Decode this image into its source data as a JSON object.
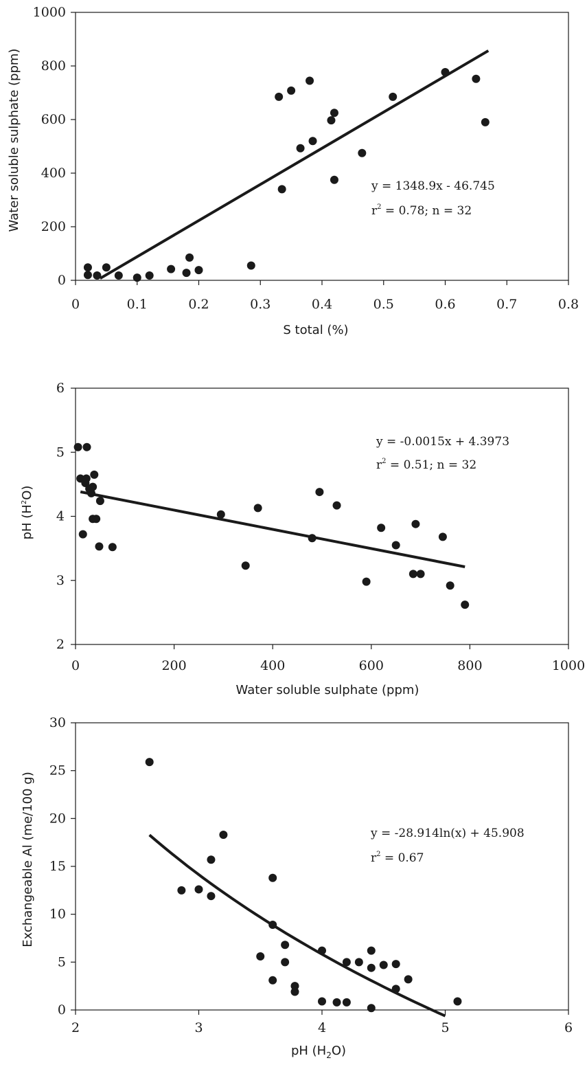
{
  "chart_data": [
    {
      "type": "scatter",
      "xlabel": "S total (%)",
      "ylabel": "Water soluble sulphate (ppm)",
      "xlim": [
        0,
        0.8
      ],
      "ylim": [
        0,
        1000
      ],
      "x_ticks": [
        "0",
        "0.1",
        "0.2",
        "0.3",
        "0.4",
        "0.5",
        "0.6",
        "0.7",
        "0.8"
      ],
      "y_ticks": [
        "0",
        "200",
        "400",
        "600",
        "800",
        "1000"
      ],
      "equation": "y = 1348.9x - 46.745",
      "stats": "r² = 0.78; n = 32",
      "trendline": {
        "kind": "linear",
        "slope": 1348.9,
        "intercept": -46.745,
        "x_range": [
          0.04,
          0.67
        ]
      },
      "points": [
        [
          0.02,
          48
        ],
        [
          0.02,
          20
        ],
        [
          0.035,
          18
        ],
        [
          0.05,
          48
        ],
        [
          0.07,
          18
        ],
        [
          0.1,
          10
        ],
        [
          0.12,
          18
        ],
        [
          0.155,
          42
        ],
        [
          0.18,
          28
        ],
        [
          0.185,
          85
        ],
        [
          0.2,
          38
        ],
        [
          0.285,
          55
        ],
        [
          0.33,
          685
        ],
        [
          0.35,
          708
        ],
        [
          0.335,
          340
        ],
        [
          0.365,
          493
        ],
        [
          0.38,
          745
        ],
        [
          0.385,
          520
        ],
        [
          0.415,
          597
        ],
        [
          0.42,
          625
        ],
        [
          0.42,
          375
        ],
        [
          0.465,
          475
        ],
        [
          0.515,
          685
        ],
        [
          0.6,
          777
        ],
        [
          0.65,
          752
        ],
        [
          0.665,
          590
        ]
      ]
    },
    {
      "type": "scatter",
      "xlabel": "Water soluble sulphate (ppm)",
      "ylabel": "pH (H²O)",
      "xlim": [
        0,
        1000
      ],
      "ylim": [
        2,
        6
      ],
      "x_ticks": [
        "0",
        "200",
        "400",
        "600",
        "800",
        "1000"
      ],
      "y_ticks": [
        "2",
        "3",
        "4",
        "5",
        "6"
      ],
      "equation": "y = -0.0015x + 4.3973",
      "stats": "r² = 0.51; n = 32",
      "trendline": {
        "kind": "linear",
        "slope": -0.0015,
        "intercept": 4.3973,
        "x_range": [
          10,
          790
        ]
      },
      "points": [
        [
          5,
          5.08
        ],
        [
          23,
          5.08
        ],
        [
          10,
          4.59
        ],
        [
          22,
          4.59
        ],
        [
          20,
          4.52
        ],
        [
          38,
          4.65
        ],
        [
          35,
          4.46
        ],
        [
          28,
          4.43
        ],
        [
          32,
          4.36
        ],
        [
          50,
          4.24
        ],
        [
          35,
          3.96
        ],
        [
          42,
          3.96
        ],
        [
          15,
          3.72
        ],
        [
          48,
          3.53
        ],
        [
          75,
          3.52
        ],
        [
          295,
          4.03
        ],
        [
          345,
          3.23
        ],
        [
          370,
          4.13
        ],
        [
          480,
          3.66
        ],
        [
          495,
          4.38
        ],
        [
          530,
          4.17
        ],
        [
          590,
          2.98
        ],
        [
          620,
          3.82
        ],
        [
          650,
          3.55
        ],
        [
          685,
          3.1
        ],
        [
          690,
          3.88
        ],
        [
          700,
          3.1
        ],
        [
          745,
          3.68
        ],
        [
          760,
          2.92
        ],
        [
          790,
          2.62
        ]
      ]
    },
    {
      "type": "scatter",
      "xlabel": "pH (H₂O)",
      "ylabel": "Exchangeable Al (me/100 g)",
      "xlim": [
        2,
        6
      ],
      "ylim": [
        0,
        30
      ],
      "x_ticks": [
        "2",
        "3",
        "4",
        "5",
        "6"
      ],
      "y_ticks": [
        "0",
        "5",
        "10",
        "15",
        "20",
        "25",
        "30"
      ],
      "equation": "y = -28.914ln(x) + 45.908",
      "stats": "r² = 0.67",
      "trendline": {
        "kind": "log",
        "a": -28.914,
        "b": 45.908,
        "x_range": [
          2.6,
          5.0
        ]
      },
      "points": [
        [
          2.6,
          25.9
        ],
        [
          2.86,
          12.5
        ],
        [
          3.0,
          12.6
        ],
        [
          3.1,
          11.9
        ],
        [
          3.1,
          15.7
        ],
        [
          3.2,
          18.3
        ],
        [
          3.5,
          5.6
        ],
        [
          3.6,
          3.1
        ],
        [
          3.6,
          8.9
        ],
        [
          3.6,
          13.8
        ],
        [
          3.7,
          6.8
        ],
        [
          3.7,
          5.0
        ],
        [
          3.78,
          1.9
        ],
        [
          3.78,
          2.5
        ],
        [
          4.0,
          6.2
        ],
        [
          4.0,
          0.9
        ],
        [
          4.12,
          0.8
        ],
        [
          4.2,
          5.0
        ],
        [
          4.2,
          0.8
        ],
        [
          4.3,
          5.0
        ],
        [
          4.4,
          6.2
        ],
        [
          4.4,
          4.4
        ],
        [
          4.4,
          0.2
        ],
        [
          4.5,
          4.7
        ],
        [
          4.6,
          4.8
        ],
        [
          4.6,
          2.2
        ],
        [
          4.7,
          3.2
        ],
        [
          5.1,
          0.9
        ]
      ]
    }
  ]
}
